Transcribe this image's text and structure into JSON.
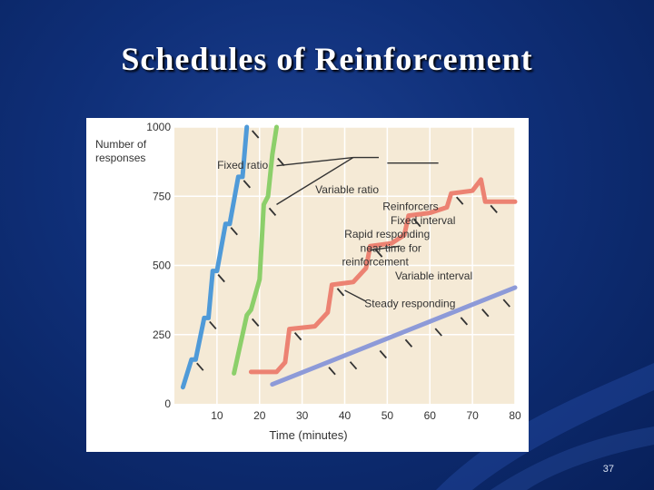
{
  "slide": {
    "title": "Schedules of Reinforcement",
    "page_number": "37"
  },
  "colors": {
    "background": "#0f2f78",
    "plot_bg": "#f5ead6",
    "fixed_ratio": "#4f9ad8",
    "variable_ratio": "#8ccf6a",
    "fixed_interval": "#ec8272",
    "variable_interval": "#8d9ad8"
  },
  "chart_data": {
    "type": "line",
    "title": "",
    "xlabel": "Time (minutes)",
    "ylabel": "Number of responses",
    "xlim": [
      0,
      80
    ],
    "ylim": [
      0,
      1000
    ],
    "xticks": [
      0,
      10,
      20,
      30,
      40,
      50,
      60,
      70,
      80
    ],
    "yticks": [
      0,
      250,
      500,
      750,
      1000
    ],
    "grid": true,
    "series": [
      {
        "name": "Fixed ratio",
        "color": "#4f9ad8",
        "points": [
          [
            2,
            60
          ],
          [
            4,
            160
          ],
          [
            5,
            160
          ],
          [
            7,
            310
          ],
          [
            8,
            310
          ],
          [
            9,
            480
          ],
          [
            10,
            480
          ],
          [
            12,
            650
          ],
          [
            13,
            650
          ],
          [
            15,
            820
          ],
          [
            16,
            820
          ],
          [
            17,
            1000
          ]
        ],
        "reinforcers": [
          [
            4,
            160
          ],
          [
            7,
            310
          ],
          [
            9,
            480
          ],
          [
            12,
            650
          ],
          [
            15,
            820
          ],
          [
            17,
            1000
          ]
        ]
      },
      {
        "name": "Variable ratio",
        "color": "#8ccf6a",
        "points": [
          [
            14,
            110
          ],
          [
            17,
            320
          ],
          [
            18,
            340
          ],
          [
            20,
            450
          ],
          [
            21,
            720
          ],
          [
            22,
            750
          ],
          [
            23,
            900
          ],
          [
            24,
            1000
          ]
        ],
        "reinforcers": [
          [
            17,
            320
          ],
          [
            21,
            720
          ],
          [
            23,
            900
          ]
        ]
      },
      {
        "name": "Fixed interval",
        "color": "#ec8272",
        "points": [
          [
            18,
            115
          ],
          [
            24,
            115
          ],
          [
            26,
            150
          ],
          [
            27,
            270
          ],
          [
            33,
            280
          ],
          [
            36,
            330
          ],
          [
            37,
            430
          ],
          [
            42,
            440
          ],
          [
            45,
            490
          ],
          [
            46,
            570
          ],
          [
            51,
            580
          ],
          [
            54,
            610
          ],
          [
            55,
            680
          ],
          [
            60,
            690
          ],
          [
            64,
            710
          ],
          [
            65,
            760
          ],
          [
            70,
            770
          ],
          [
            72,
            810
          ],
          [
            73,
            730
          ],
          [
            80,
            730
          ]
        ],
        "reinforcers": [
          [
            27,
            270
          ],
          [
            37,
            430
          ],
          [
            46,
            570
          ],
          [
            55,
            680
          ],
          [
            65,
            760
          ],
          [
            73,
            730
          ]
        ]
      },
      {
        "name": "Variable interval",
        "color": "#8d9ad8",
        "points": [
          [
            23,
            70
          ],
          [
            80,
            420
          ]
        ],
        "reinforcers": [
          [
            35,
            145
          ],
          [
            40,
            165
          ],
          [
            47,
            205
          ],
          [
            53,
            245
          ],
          [
            60,
            285
          ],
          [
            66,
            325
          ],
          [
            71,
            355
          ],
          [
            76,
            390
          ]
        ]
      }
    ],
    "annotations": [
      {
        "text": "Fixed ratio",
        "x": 22,
        "y": 850
      },
      {
        "text": "Variable ratio",
        "x": 48,
        "y": 760
      },
      {
        "text": "Reinforcers",
        "x": 62,
        "y": 700
      },
      {
        "text": "Fixed interval",
        "x": 66,
        "y": 650
      },
      {
        "text": "Rapid responding",
        "x": 60,
        "y": 600
      },
      {
        "text": "near time for",
        "x": 58,
        "y": 550
      },
      {
        "text": "reinforcement",
        "x": 55,
        "y": 500
      },
      {
        "text": "Variable interval",
        "x": 70,
        "y": 450
      },
      {
        "text": "Steady responding",
        "x": 66,
        "y": 350
      }
    ]
  }
}
